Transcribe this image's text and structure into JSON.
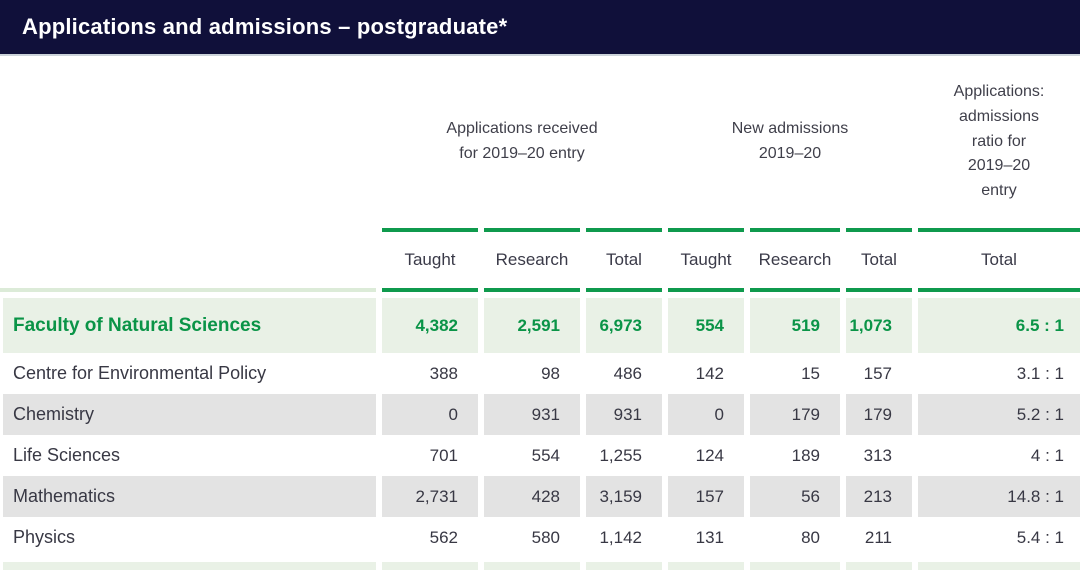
{
  "header": {
    "title": "Applications and admissions – postgraduate*"
  },
  "colors": {
    "navy_bar": "#10103a",
    "green_accent": "#0f9a4d",
    "highlight_row_bg": "#e9f1e6",
    "alt_row_bg": "#e3e3e3",
    "text": "#383844"
  },
  "table": {
    "column_groups": [
      {
        "lines": [
          "Applications received",
          "for 2019–20 entry"
        ]
      },
      {
        "lines": [
          "New admissions",
          "2019–20"
        ]
      },
      {
        "lines": [
          "Applications:",
          "admissions",
          "ratio for",
          "2019–20",
          "entry"
        ]
      }
    ],
    "sub_headers": [
      "Taught",
      "Research",
      "Total",
      "Taught",
      "Research",
      "Total",
      "Total"
    ],
    "rows": [
      {
        "label": "Faculty of Natural Sciences",
        "style": "highlight",
        "values": [
          "4,382",
          "2,591",
          "6,973",
          "554",
          "519",
          "1,073",
          "6.5 : 1"
        ]
      },
      {
        "label": "Centre for Environmental Policy",
        "style": "white",
        "values": [
          "388",
          "98",
          "486",
          "142",
          "15",
          "157",
          "3.1 : 1"
        ]
      },
      {
        "label": "Chemistry",
        "style": "gray",
        "values": [
          "0",
          "931",
          "931",
          "0",
          "179",
          "179",
          "5.2 : 1"
        ]
      },
      {
        "label": "Life Sciences",
        "style": "white",
        "values": [
          "701",
          "554",
          "1,255",
          "124",
          "189",
          "313",
          "4 : 1"
        ]
      },
      {
        "label": "Mathematics",
        "style": "gray",
        "values": [
          "2,731",
          "428",
          "3,159",
          "157",
          "56",
          "213",
          "14.8 : 1"
        ]
      },
      {
        "label": "Physics",
        "style": "white",
        "values": [
          "562",
          "580",
          "1,142",
          "131",
          "80",
          "211",
          "5.4 : 1"
        ]
      }
    ]
  }
}
